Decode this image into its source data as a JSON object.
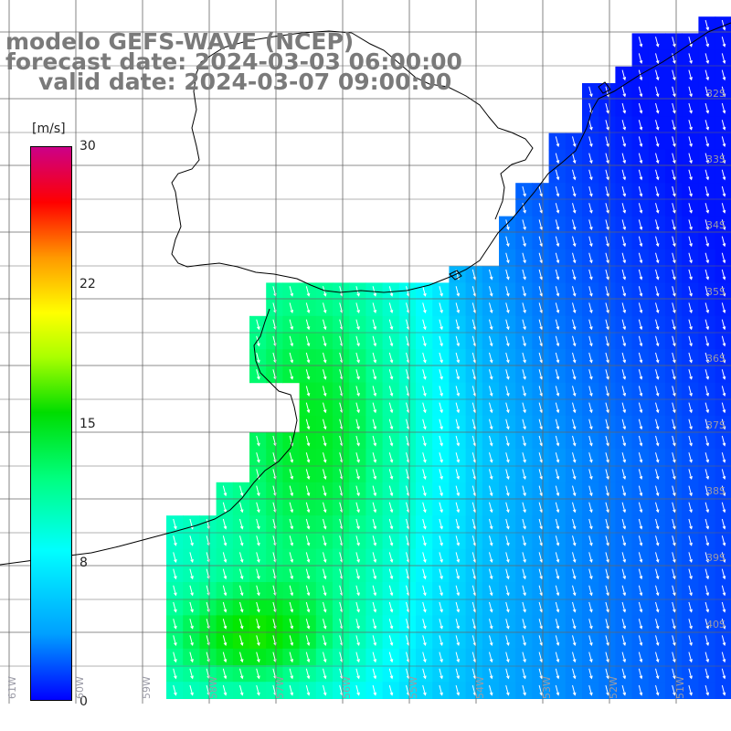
{
  "title": {
    "model": "modelo GEFS-WAVE (NCEP)",
    "forecast": "forecast date: 2024-03-03 06:00:00",
    "valid": "valid date: 2024-03-07 09:00:00"
  },
  "colorbar": {
    "unit": "[m/s]",
    "ticks": [
      "30",
      "22",
      "15",
      "8",
      "0"
    ],
    "colors": [
      "#0000ff",
      "#00a0ff",
      "#00ffff",
      "#00ff80",
      "#00dd00",
      "#aaff00",
      "#ffff00",
      "#ff9900",
      "#ff0000",
      "#cc0088"
    ]
  },
  "lat_labels": [
    "32S",
    "33S",
    "34S",
    "35S",
    "36S",
    "37S",
    "38S",
    "39S",
    "40S"
  ],
  "lon_labels": [
    "61W",
    "60W",
    "59W",
    "58W",
    "57W",
    "56W",
    "55W",
    "54W",
    "53W",
    "52W",
    "51W"
  ],
  "colors": {
    "land": "#ffffff",
    "grid": "#666666",
    "coast": "#000000",
    "arrows": "#ffffff"
  }
}
